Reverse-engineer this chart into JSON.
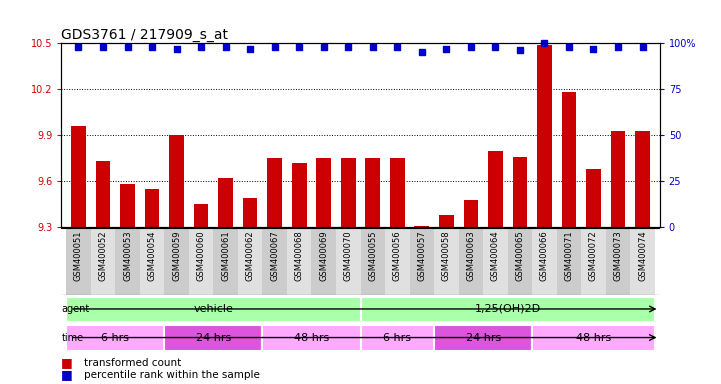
{
  "title": "GDS3761 / 217909_s_at",
  "samples": [
    "GSM400051",
    "GSM400052",
    "GSM400053",
    "GSM400054",
    "GSM400059",
    "GSM400060",
    "GSM400061",
    "GSM400062",
    "GSM400067",
    "GSM400068",
    "GSM400069",
    "GSM400070",
    "GSM400055",
    "GSM400056",
    "GSM400057",
    "GSM400058",
    "GSM400063",
    "GSM400064",
    "GSM400065",
    "GSM400066",
    "GSM400071",
    "GSM400072",
    "GSM400073",
    "GSM400074"
  ],
  "bar_values": [
    9.96,
    9.73,
    9.58,
    9.55,
    9.9,
    9.45,
    9.62,
    9.49,
    9.75,
    9.72,
    9.75,
    9.75,
    9.75,
    9.75,
    9.31,
    9.38,
    9.48,
    9.8,
    9.76,
    10.49,
    10.18,
    9.68,
    9.93,
    9.93
  ],
  "percentile_values": [
    98,
    98,
    98,
    98,
    97,
    98,
    98,
    97,
    98,
    98,
    98,
    98,
    98,
    98,
    95,
    97,
    98,
    98,
    96,
    100,
    98,
    97,
    98,
    98
  ],
  "ylim_left": [
    9.3,
    10.5
  ],
  "ylim_right": [
    0,
    100
  ],
  "yticks_left": [
    9.3,
    9.6,
    9.9,
    10.2,
    10.5
  ],
  "yticks_right": [
    0,
    25,
    50,
    75,
    100
  ],
  "bar_color": "#cc0000",
  "dot_color": "#0000cc",
  "agent_green_light": "#aaffaa",
  "agent_green_dark": "#66ee66",
  "time_pink_light": "#ffaaff",
  "time_pink_dark": "#dd55dd",
  "agent_groups": [
    {
      "label": "vehicle",
      "start": 0,
      "end": 11
    },
    {
      "label": "1,25(OH)2D",
      "start": 12,
      "end": 23
    }
  ],
  "time_groups": [
    {
      "label": "6 hrs",
      "start": 0,
      "end": 3,
      "dark": false
    },
    {
      "label": "24 hrs",
      "start": 4,
      "end": 7,
      "dark": true
    },
    {
      "label": "48 hrs",
      "start": 8,
      "end": 11,
      "dark": false
    },
    {
      "label": "6 hrs",
      "start": 12,
      "end": 14,
      "dark": false
    },
    {
      "label": "24 hrs",
      "start": 15,
      "end": 18,
      "dark": true
    },
    {
      "label": "48 hrs",
      "start": 19,
      "end": 23,
      "dark": false
    }
  ],
  "tick_bg_even": "#cccccc",
  "tick_bg_odd": "#e0e0e0",
  "bg_color": "#ffffff",
  "title_fontsize": 10,
  "tick_fontsize": 7,
  "bar_tick_fontsize": 6,
  "label_fontsize": 8
}
